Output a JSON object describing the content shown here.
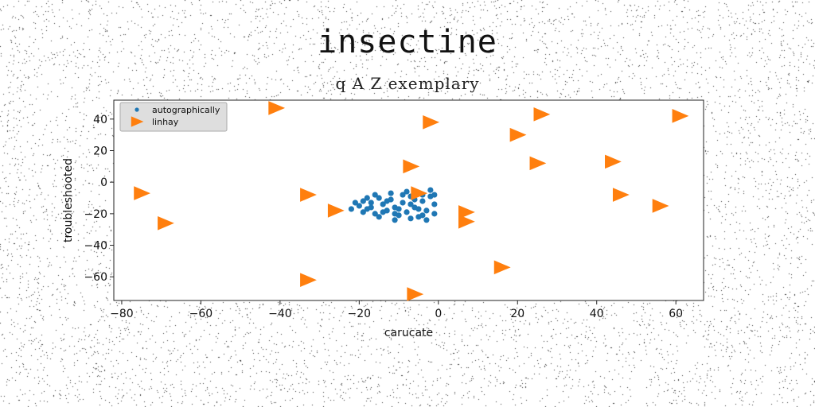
{
  "chart_data": {
    "type": "scatter",
    "title": "insectine",
    "subtitle": "q A Z exemplary",
    "xlabel": "carucate",
    "ylabel": "troubleshooted",
    "xlim": [
      -82,
      67
    ],
    "ylim": [
      -75,
      52
    ],
    "xticks": [
      -80,
      -60,
      -40,
      -20,
      0,
      20,
      40,
      60
    ],
    "yticks": [
      -60,
      -40,
      -20,
      0,
      20,
      40
    ],
    "grid": false,
    "legend_position": "top-left",
    "series": [
      {
        "name": "autographically",
        "marker": "circle",
        "color": "#1f77b4",
        "points": [
          [
            -21,
            -13
          ],
          [
            -20,
            -15
          ],
          [
            -19,
            -12
          ],
          [
            -18,
            -17
          ],
          [
            -17,
            -13
          ],
          [
            -16,
            -20
          ],
          [
            -15,
            -10
          ],
          [
            -14,
            -14
          ],
          [
            -13,
            -18
          ],
          [
            -12,
            -11
          ],
          [
            -11,
            -16
          ],
          [
            -10,
            -21
          ],
          [
            -9,
            -13
          ],
          [
            -8,
            -19
          ],
          [
            -7,
            -9
          ],
          [
            -6,
            -16
          ],
          [
            -5,
            -22
          ],
          [
            -4,
            -12
          ],
          [
            -3,
            -18
          ],
          [
            -2,
            -9
          ],
          [
            -1,
            -14
          ],
          [
            -2,
            -5
          ],
          [
            -4,
            -8
          ],
          [
            -8,
            -6
          ],
          [
            -12,
            -7
          ],
          [
            -16,
            -8
          ],
          [
            -19,
            -19
          ],
          [
            -15,
            -22
          ],
          [
            -11,
            -24
          ],
          [
            -7,
            -23
          ],
          [
            -3,
            -24
          ],
          [
            -1,
            -20
          ],
          [
            -10,
            -17
          ],
          [
            -6,
            -11
          ],
          [
            -13,
            -12
          ],
          [
            -17,
            -16
          ],
          [
            -9,
            -8
          ],
          [
            -5,
            -17
          ],
          [
            -14,
            -19
          ],
          [
            -22,
            -17
          ],
          [
            -11,
            -20
          ],
          [
            -7,
            -14
          ],
          [
            -1,
            -8
          ],
          [
            -18,
            -10
          ],
          [
            -4,
            -21
          ]
        ]
      },
      {
        "name": "linhay",
        "marker": "triangle-right",
        "color": "#ff7f0e",
        "points": [
          [
            -41,
            47
          ],
          [
            -75,
            -7
          ],
          [
            -69,
            -26
          ],
          [
            -33,
            -8
          ],
          [
            -33,
            -62
          ],
          [
            -26,
            -18
          ],
          [
            -7,
            10
          ],
          [
            -5,
            -7
          ],
          [
            -6,
            -71
          ],
          [
            -2,
            38
          ],
          [
            7,
            -19
          ],
          [
            7,
            -25
          ],
          [
            16,
            -54
          ],
          [
            20,
            30
          ],
          [
            25,
            12
          ],
          [
            26,
            43
          ],
          [
            44,
            13
          ],
          [
            46,
            -8
          ],
          [
            56,
            -15
          ],
          [
            61,
            42
          ]
        ]
      }
    ]
  }
}
